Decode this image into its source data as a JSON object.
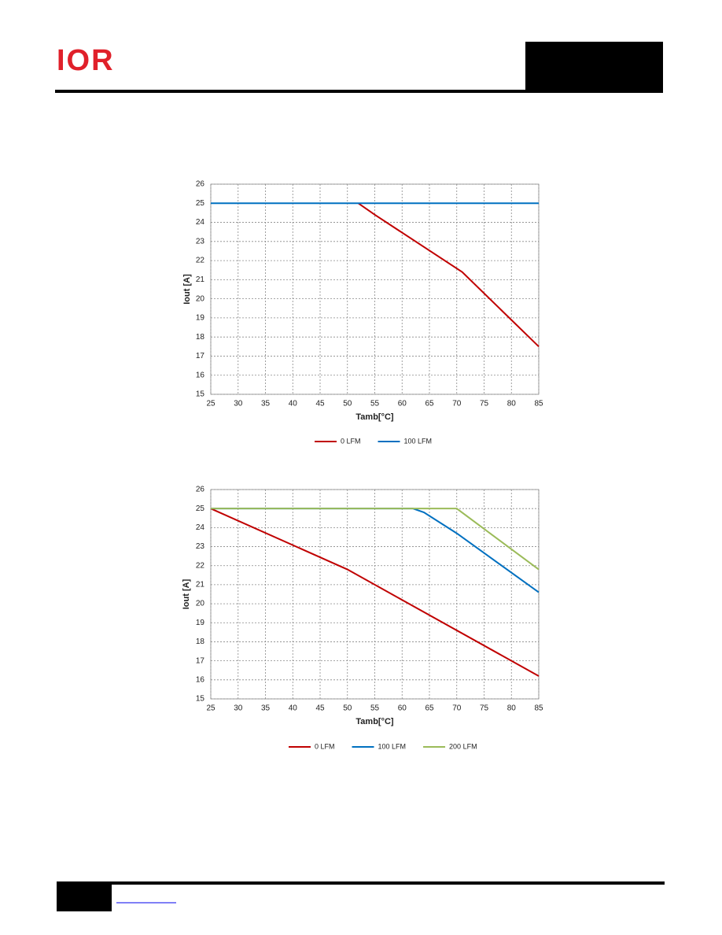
{
  "header": {
    "logo": "IOR"
  },
  "chart_data": [
    {
      "type": "line",
      "x_label": "Tamb[°C]",
      "y_label": "Iout [A]",
      "xlim": [
        25,
        85
      ],
      "xticks": [
        25,
        30,
        35,
        40,
        45,
        50,
        55,
        60,
        65,
        70,
        75,
        80,
        85
      ],
      "ylim": [
        15,
        26
      ],
      "yticks": [
        15,
        16,
        17,
        18,
        19,
        20,
        21,
        22,
        23,
        24,
        25,
        26
      ],
      "grid": true,
      "series": [
        {
          "name": "0 LFM",
          "color": "#c00000",
          "x": [
            52,
            55,
            71,
            85
          ],
          "values": [
            25,
            24.4,
            21.4,
            17.5
          ]
        },
        {
          "name": "100 LFM",
          "color": "#0070c0",
          "x": [
            25,
            85
          ],
          "values": [
            25,
            25
          ]
        }
      ]
    },
    {
      "type": "line",
      "x_label": "Tamb[°C]",
      "y_label": "Iout [A]",
      "xlim": [
        25,
        85
      ],
      "xticks": [
        25,
        30,
        35,
        40,
        45,
        50,
        55,
        60,
        65,
        70,
        75,
        80,
        85
      ],
      "ylim": [
        15,
        26
      ],
      "yticks": [
        15,
        16,
        17,
        18,
        19,
        20,
        21,
        22,
        23,
        24,
        25,
        26
      ],
      "grid": true,
      "series": [
        {
          "name": "0 LFM",
          "color": "#c00000",
          "x": [
            25,
            50,
            85
          ],
          "values": [
            25,
            21.8,
            16.2
          ]
        },
        {
          "name": "100 LFM",
          "color": "#0070c0",
          "x": [
            25,
            62,
            64,
            70,
            85
          ],
          "values": [
            25,
            25,
            24.8,
            23.7,
            20.6
          ]
        },
        {
          "name": "200 LFM",
          "color": "#9bbb59",
          "x": [
            25,
            70,
            85
          ],
          "values": [
            25,
            25,
            21.8
          ]
        }
      ]
    }
  ]
}
